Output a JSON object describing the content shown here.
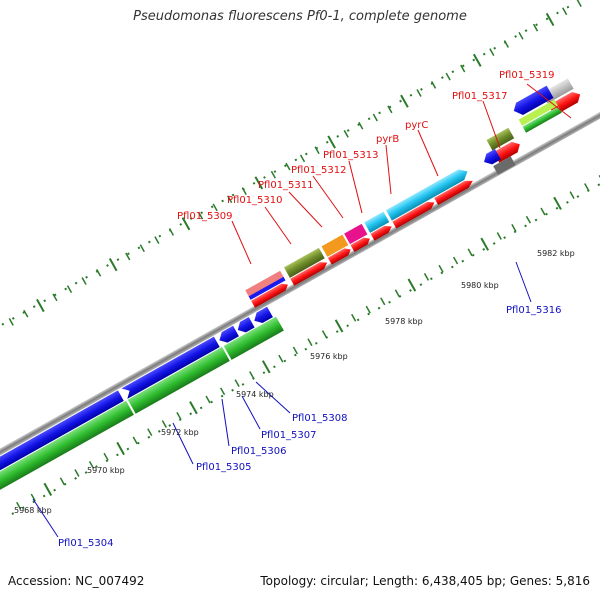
{
  "title": "Pseudomonas fluorescens Pf0-1, complete genome",
  "footer": {
    "accession": "Accession: NC_007492",
    "info": "Topology: circular; Length: 6,438,405 bp; Genes: 5,816"
  },
  "scale_labels": [
    "5968 kbp",
    "5970 kbp",
    "5972 kbp",
    "5974 kbp",
    "5976 kbp",
    "5978 kbp",
    "5980 kbp",
    "5982 kbp"
  ],
  "forward_genes": [
    "Pfl01_5309",
    "Pfl01_5310",
    "Pfl01_5311",
    "Pfl01_5312",
    "Pfl01_5313",
    "pyrB",
    "pyrC",
    "Pfl01_5317",
    "Pfl01_5319"
  ],
  "reverse_genes": [
    "Pfl01_5304",
    "Pfl01_5305",
    "Pfl01_5306",
    "Pfl01_5307",
    "Pfl01_5308",
    "Pfl01_5316"
  ],
  "colors": {
    "forward_label": "#e01010",
    "reverse_label": "#1010c0",
    "cds_red": "#ff1010",
    "cds_blue": "#1010ee",
    "cds_green": "#33cc33",
    "backbone": "#8a8a8a",
    "tick": "#2a7a2a"
  }
}
